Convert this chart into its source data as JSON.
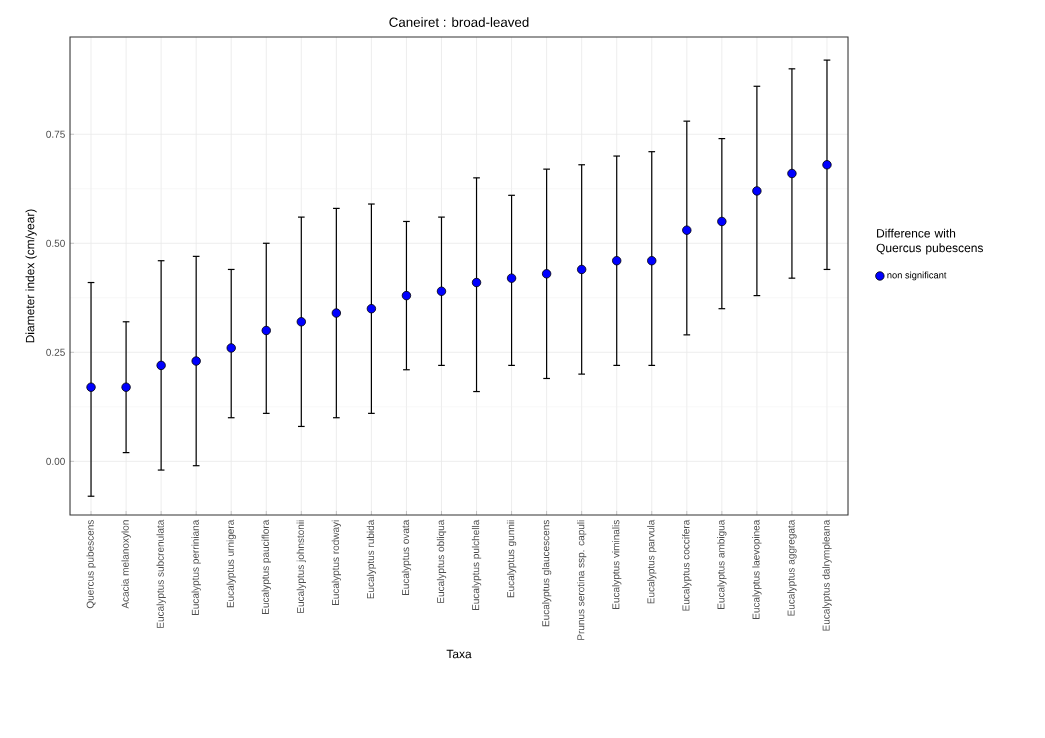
{
  "chart_data": {
    "type": "scatter",
    "title": "Caneiret : broad-leaved",
    "xlabel": "Taxa",
    "ylabel": "Diameter index (cm/year)",
    "legend_title": "Difference with Quercus pubescens",
    "categories": [
      "Quercus pubescens",
      "Acacia melanoxylon",
      "Eucalyptus subcrenulata",
      "Eucalyptus perriniana",
      "Eucalyptus urnigera",
      "Eucalyptus pauciflora",
      "Eucalyptus johnstonii",
      "Eucalyptus rodwayi",
      "Eucalyptus rubida",
      "Eucalyptus ovata",
      "Eucalyptus obliqua",
      "Eucalyptus pulchella",
      "Eucalyptus gunnii",
      "Eucalyptus glaucescens",
      "Prunus serotina ssp. capuli",
      "Eucalyptus viminalis",
      "Eucalyptus parvula",
      "Eucalyptus coccifera",
      "Eucalyptus ambigua",
      "Eucalyptus laevopinea",
      "Eucalyptus aggregata",
      "Eucalyptus dalrympleana"
    ],
    "series": [
      {
        "name": "non significant",
        "color": "#0000ff",
        "values": [
          0.17,
          0.17,
          0.22,
          0.23,
          0.26,
          0.3,
          0.32,
          0.34,
          0.35,
          0.38,
          0.39,
          0.41,
          0.42,
          0.43,
          0.44,
          0.46,
          0.46,
          0.53,
          0.55,
          0.62,
          0.66,
          0.68
        ],
        "errors": [
          [
            -0.08,
            0.41
          ],
          [
            0.02,
            0.32
          ],
          [
            -0.02,
            0.46
          ],
          [
            -0.01,
            0.47
          ],
          [
            0.1,
            0.44
          ],
          [
            0.11,
            0.5
          ],
          [
            0.08,
            0.56
          ],
          [
            0.1,
            0.58
          ],
          [
            0.11,
            0.59
          ],
          [
            0.21,
            0.55
          ],
          [
            0.22,
            0.56
          ],
          [
            0.16,
            0.65
          ],
          [
            0.22,
            0.61
          ],
          [
            0.19,
            0.67
          ],
          [
            0.2,
            0.68
          ],
          [
            0.22,
            0.7
          ],
          [
            0.22,
            0.71
          ],
          [
            0.29,
            0.78
          ],
          [
            0.35,
            0.74
          ],
          [
            0.38,
            0.86
          ],
          [
            0.42,
            0.9
          ],
          [
            0.44,
            0.92
          ]
        ]
      }
    ],
    "ylim": [
      -0.123,
      0.973
    ],
    "yticks": [
      {
        "value": 0,
        "label": "0.00"
      },
      {
        "value": 0.25,
        "label": "0.25"
      },
      {
        "value": 0.5,
        "label": "0.50"
      },
      {
        "value": 0.75,
        "label": "0.75"
      }
    ],
    "grid": true,
    "legend": "right",
    "marker": "circle"
  }
}
